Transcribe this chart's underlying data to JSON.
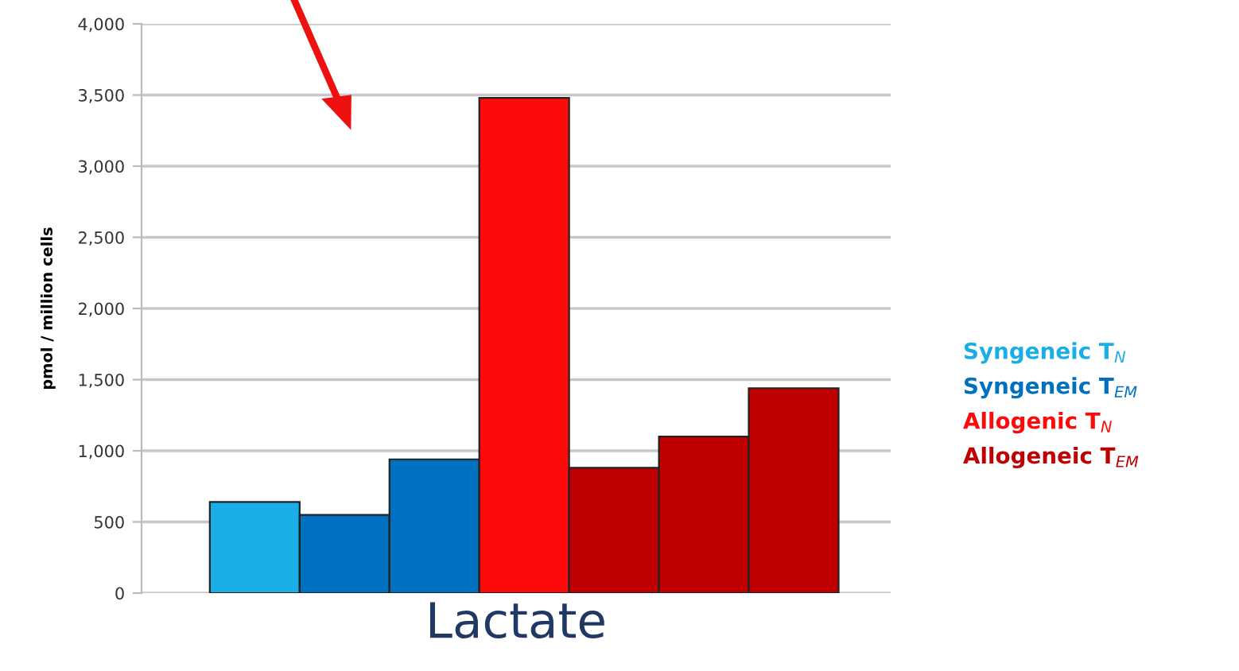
{
  "chart_data": {
    "type": "bar",
    "xlabel": "Lactate",
    "ylabel": "pmol / million cells",
    "categories": [
      null,
      null,
      null,
      null,
      null,
      null,
      null
    ],
    "series": [
      {
        "name": "Syngeneic T$_{N}$",
        "color": "#1aaee8",
        "values": [
          640,
          null,
          null,
          null,
          null,
          null,
          null
        ]
      },
      {
        "name": "Syngeneic T$_{EM}$",
        "color": "#0070c0",
        "values": [
          null,
          550,
          940,
          null,
          null,
          null,
          null
        ]
      },
      {
        "name": "Allogenic T$_{N}$",
        "color": "#fe0a0a",
        "values": [
          null,
          null,
          null,
          3480,
          null,
          null,
          null
        ]
      },
      {
        "name": "Allogeneic T$_{EM}$",
        "color": "#c00000",
        "values": [
          null,
          null,
          null,
          null,
          880,
          1100,
          1440
        ]
      }
    ],
    "ylim": [
      0,
      4000
    ],
    "yticks": [
      {
        "value": 0,
        "label": "0"
      },
      {
        "value": 500,
        "label": "500"
      },
      {
        "value": 1000,
        "label": "1,000"
      },
      {
        "value": 1500,
        "label": "1,500"
      },
      {
        "value": 2000,
        "label": "2,000"
      },
      {
        "value": 2500,
        "label": "2,500"
      },
      {
        "value": 3000,
        "label": "3,000"
      },
      {
        "value": 3500,
        "label": "3,500"
      },
      {
        "value": 4000,
        "label": "4,000"
      }
    ],
    "grid": "y",
    "legend": "right",
    "stacked": true
  }
}
